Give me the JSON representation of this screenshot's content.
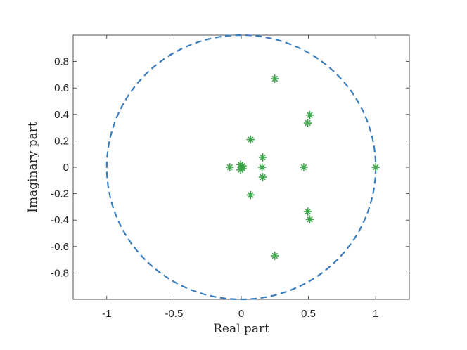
{
  "chart_data": {
    "type": "scatter",
    "xlabel": "Real part",
    "ylabel": "Imaginary part",
    "xlim": [
      -1.25,
      1.25
    ],
    "ylim": [
      -1,
      1
    ],
    "xticks": [
      -1,
      -0.5,
      0,
      0.5,
      1
    ],
    "xtick_labels": [
      "-1",
      "-0.5",
      "0",
      "0.5",
      "1"
    ],
    "yticks": [
      -0.8,
      -0.6,
      -0.4,
      -0.2,
      0,
      0.2,
      0.4,
      0.6,
      0.8
    ],
    "ytick_labels": [
      "-0.8",
      "-0.6",
      "-0.4",
      "-0.2",
      "0",
      "0.2",
      "0.4",
      "0.6",
      "0.8"
    ],
    "grid": false,
    "unit_circle": {
      "radius": 1,
      "style": "dashed",
      "color": "#3a7dbd"
    },
    "marker": {
      "shape": "asterisk",
      "color": "#3da64a"
    },
    "points": [
      {
        "x": 1.0,
        "y": 0.0
      },
      {
        "x": 0.25,
        "y": 0.67
      },
      {
        "x": 0.25,
        "y": -0.67
      },
      {
        "x": 0.51,
        "y": 0.395
      },
      {
        "x": 0.51,
        "y": -0.395
      },
      {
        "x": 0.495,
        "y": 0.335
      },
      {
        "x": 0.495,
        "y": -0.335
      },
      {
        "x": 0.465,
        "y": 0.0
      },
      {
        "x": 0.16,
        "y": 0.075
      },
      {
        "x": 0.16,
        "y": -0.075
      },
      {
        "x": 0.155,
        "y": 0.0
      },
      {
        "x": 0.07,
        "y": 0.21
      },
      {
        "x": 0.07,
        "y": -0.21
      },
      {
        "x": -0.085,
        "y": 0.0
      },
      {
        "x": -0.005,
        "y": 0.02
      },
      {
        "x": -0.005,
        "y": -0.02
      },
      {
        "x": 0.0,
        "y": 0.0
      },
      {
        "x": 0.01,
        "y": 0.01
      },
      {
        "x": 0.01,
        "y": -0.01
      }
    ]
  }
}
